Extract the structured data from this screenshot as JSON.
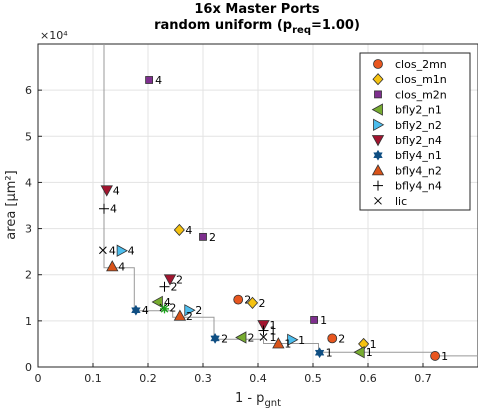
{
  "chart_data": {
    "type": "scatter",
    "title_line1": "16x Master Ports",
    "title_line2_prefix": "random uniform (p",
    "title_line2_sub": "req",
    "title_line2_suffix": "=1.00)",
    "xlabel_main": "1 - p",
    "xlabel_sub": "gnt",
    "ylabel": "area [μm²]",
    "y_exponent_label": "×10⁴",
    "xlim": [
      0,
      0.8
    ],
    "ylim": [
      0,
      70000
    ],
    "xticks": [
      0,
      0.1,
      0.2,
      0.3,
      0.4,
      0.5,
      0.6,
      0.7
    ],
    "xtick_labels": [
      "0",
      "0.1",
      "0.2",
      "0.3",
      "0.4",
      "0.5",
      "0.6",
      "0.7"
    ],
    "yticks": [
      0,
      10000,
      20000,
      30000,
      40000,
      50000,
      60000
    ],
    "ytick_labels": [
      "0",
      "1",
      "2",
      "3",
      "4",
      "5",
      "6"
    ],
    "grid": true,
    "legend_position": "top-right",
    "pareto_front": [
      [
        0.12,
        70000
      ],
      [
        0.12,
        21500
      ],
      [
        0.175,
        21500
      ],
      [
        0.175,
        12200
      ],
      [
        0.245,
        12200
      ],
      [
        0.245,
        10800
      ],
      [
        0.32,
        10800
      ],
      [
        0.32,
        6000
      ],
      [
        0.41,
        6000
      ],
      [
        0.41,
        5100
      ],
      [
        0.51,
        5100
      ],
      [
        0.51,
        3200
      ],
      [
        0.72,
        3200
      ],
      [
        0.72,
        2400
      ],
      [
        0.8,
        2400
      ]
    ],
    "series": [
      {
        "name": "clos_2mn",
        "marker": "circle",
        "color": "#e8561f",
        "points": [
          {
            "x": 0.364,
            "y": 14600,
            "label": "2"
          },
          {
            "x": 0.535,
            "y": 6200,
            "label": "2"
          },
          {
            "x": 0.722,
            "y": 2400,
            "label": "1"
          }
        ]
      },
      {
        "name": "clos_m1n",
        "marker": "diamond",
        "color": "#f5c211",
        "points": [
          {
            "x": 0.257,
            "y": 29700,
            "label": "4"
          },
          {
            "x": 0.39,
            "y": 13900,
            "label": "2"
          },
          {
            "x": 0.592,
            "y": 5000,
            "label": "1"
          }
        ]
      },
      {
        "name": "clos_m2n",
        "marker": "square",
        "color": "#7e2f8e",
        "points": [
          {
            "x": 0.202,
            "y": 62200,
            "label": "4"
          },
          {
            "x": 0.3,
            "y": 28200,
            "label": "2"
          },
          {
            "x": 0.502,
            "y": 10200,
            "label": "1"
          }
        ]
      },
      {
        "name": "bfly2_n1",
        "marker": "triangle-left",
        "color": "#77ac30",
        "points": [
          {
            "x": 0.218,
            "y": 14100,
            "label": "4"
          },
          {
            "x": 0.37,
            "y": 6400,
            "label": "2"
          },
          {
            "x": 0.585,
            "y": 3200,
            "label": "1"
          }
        ]
      },
      {
        "name": "bfly2_n2",
        "marker": "triangle-right",
        "color": "#4dbeee",
        "points": [
          {
            "x": 0.152,
            "y": 25200,
            "label": "4"
          },
          {
            "x": 0.275,
            "y": 12300,
            "label": "2"
          },
          {
            "x": 0.462,
            "y": 5900,
            "label": "1"
          }
        ]
      },
      {
        "name": "bfly2_n4",
        "marker": "triangle-down",
        "color": "#a2142f",
        "points": [
          {
            "x": 0.125,
            "y": 38300,
            "label": "4"
          },
          {
            "x": 0.24,
            "y": 19000,
            "label": "2"
          },
          {
            "x": 0.41,
            "y": 9100,
            "label": "1"
          }
        ]
      },
      {
        "name": "bfly4_n1",
        "marker": "hexagram",
        "color": "#0f4e82",
        "points": [
          {
            "x": 0.178,
            "y": 12300,
            "label": "4"
          },
          {
            "x": 0.322,
            "y": 6200,
            "label": "2"
          },
          {
            "x": 0.512,
            "y": 3100,
            "label": "1"
          }
        ]
      },
      {
        "name": "bfly4_n2",
        "marker": "triangle-up",
        "color": "#d95319",
        "points": [
          {
            "x": 0.135,
            "y": 21800,
            "label": "4"
          },
          {
            "x": 0.258,
            "y": 11100,
            "label": "2"
          },
          {
            "x": 0.437,
            "y": 5100,
            "label": "1"
          }
        ]
      },
      {
        "name": "bfly4_n4",
        "marker": "plus",
        "color": "#000000",
        "points": [
          {
            "x": 0.12,
            "y": 34300,
            "label": "4"
          },
          {
            "x": 0.23,
            "y": 17400,
            "label": "2"
          },
          {
            "x": 0.41,
            "y": 7900,
            "label": "1"
          }
        ]
      },
      {
        "name": "lic",
        "marker": "cross",
        "color": "#000000",
        "points": [
          {
            "x": 0.118,
            "y": 25300,
            "label": "4"
          },
          {
            "x": 0.228,
            "y": 12900,
            "label": "2"
          },
          {
            "x": 0.41,
            "y": 6500,
            "label": "1"
          }
        ]
      }
    ],
    "extra_markers": [
      {
        "marker": "asterisk",
        "color": "#1aa31a",
        "x": 0.23,
        "y": 12600
      }
    ]
  }
}
